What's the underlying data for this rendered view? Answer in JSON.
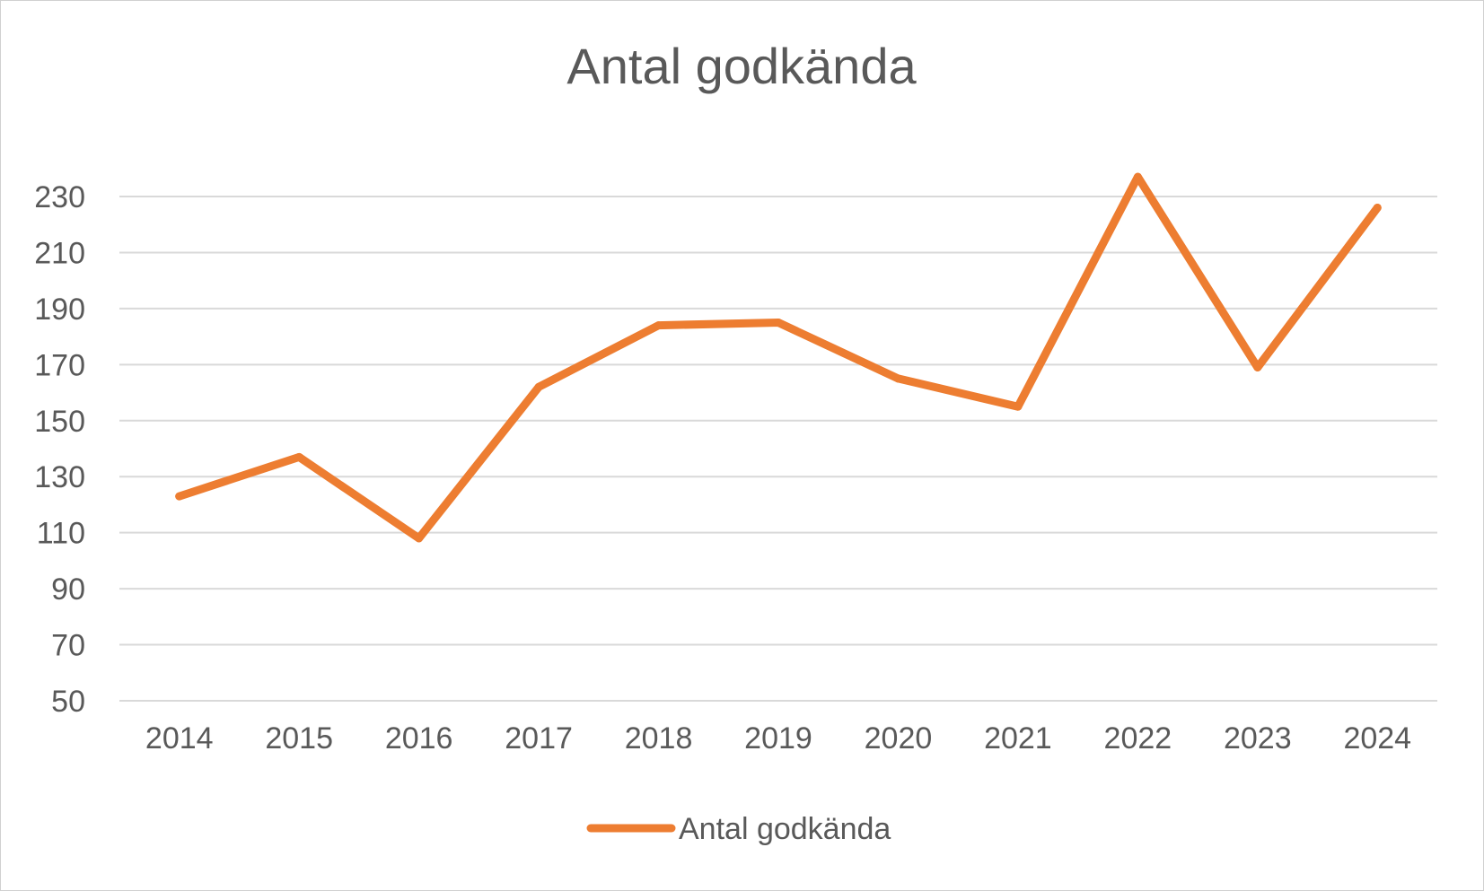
{
  "chart_data": {
    "type": "line",
    "title": "Antal godkända",
    "xlabel": "",
    "ylabel": "",
    "categories": [
      "2014",
      "2015",
      "2016",
      "2017",
      "2018",
      "2019",
      "2020",
      "2021",
      "2022",
      "2023",
      "2024"
    ],
    "series": [
      {
        "name": "Antal godkända",
        "values": [
          123,
          137,
          108,
          162,
          184,
          185,
          165,
          155,
          237,
          169,
          226
        ],
        "color": "#ED7D31"
      }
    ],
    "yticks": [
      "50",
      "70",
      "90",
      "110",
      "130",
      "150",
      "170",
      "190",
      "210",
      "230"
    ],
    "ylim": [
      50,
      230
    ],
    "grid": true,
    "legend_position": "bottom"
  }
}
